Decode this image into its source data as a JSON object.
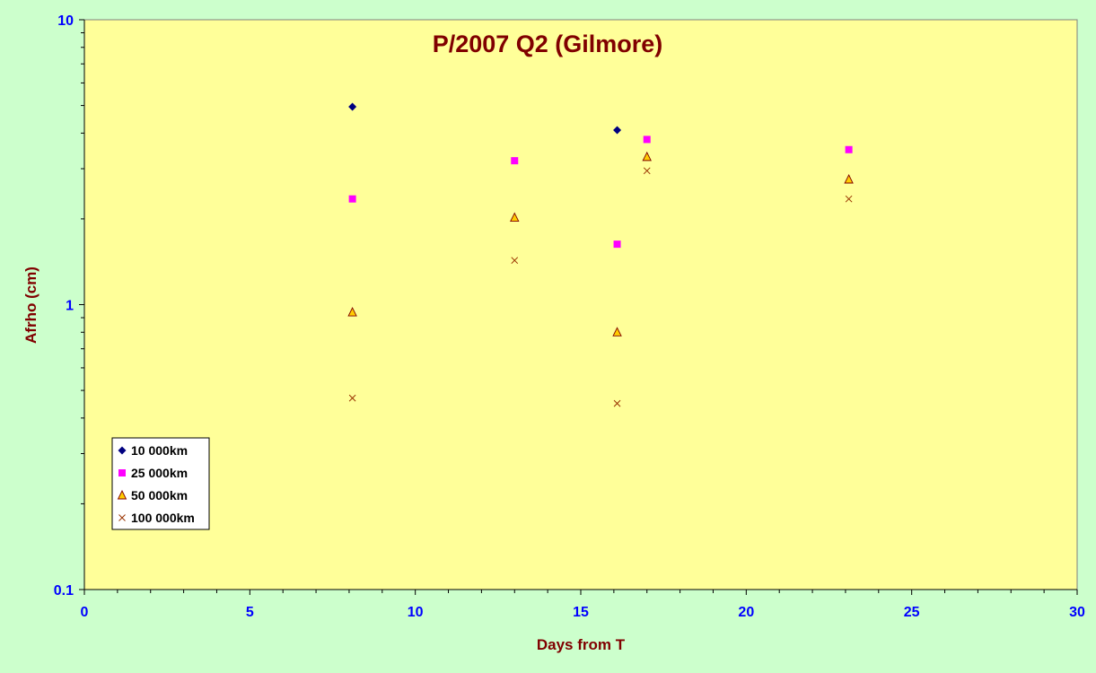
{
  "chart_data": {
    "type": "scatter",
    "title": "P/2007 Q2 (Gilmore)",
    "xlabel": "Days from T",
    "ylabel": "Afrho (cm)",
    "xlim": [
      0,
      30
    ],
    "ylim": [
      0.1,
      10
    ],
    "yscale": "log",
    "x_ticks": [
      "0",
      "5",
      "10",
      "15",
      "20",
      "25",
      "30"
    ],
    "y_ticks": [
      "0.1",
      "1",
      "10"
    ],
    "grid": false,
    "legend_position": "bottom-left",
    "colors": {
      "plot_background": "#ffff99",
      "page_background": "#ccffcc",
      "axis_text": "#0000ff",
      "title_text": "#800000"
    },
    "series": [
      {
        "name": "10 000km",
        "marker": "diamond",
        "color": "#000080",
        "points": [
          [
            8.1,
            4.95
          ],
          [
            16.1,
            4.1
          ]
        ]
      },
      {
        "name": "25 000km",
        "marker": "square",
        "color": "#ff00ff",
        "points": [
          [
            8.1,
            2.35
          ],
          [
            13.0,
            3.2
          ],
          [
            16.1,
            1.63
          ],
          [
            17.0,
            3.8
          ],
          [
            23.1,
            3.5
          ]
        ]
      },
      {
        "name": "50 000km",
        "marker": "triangle",
        "color": "#ffcc00",
        "stroke": "#800000",
        "points": [
          [
            8.1,
            0.94
          ],
          [
            13.0,
            2.02
          ],
          [
            16.1,
            0.8
          ],
          [
            17.0,
            3.3
          ],
          [
            23.1,
            2.75
          ]
        ]
      },
      {
        "name": "100 000km",
        "marker": "x",
        "color": "#993300",
        "points": [
          [
            8.1,
            0.47
          ],
          [
            13.0,
            1.43
          ],
          [
            16.1,
            0.45
          ],
          [
            17.0,
            2.95
          ],
          [
            23.1,
            2.35
          ]
        ]
      }
    ]
  }
}
